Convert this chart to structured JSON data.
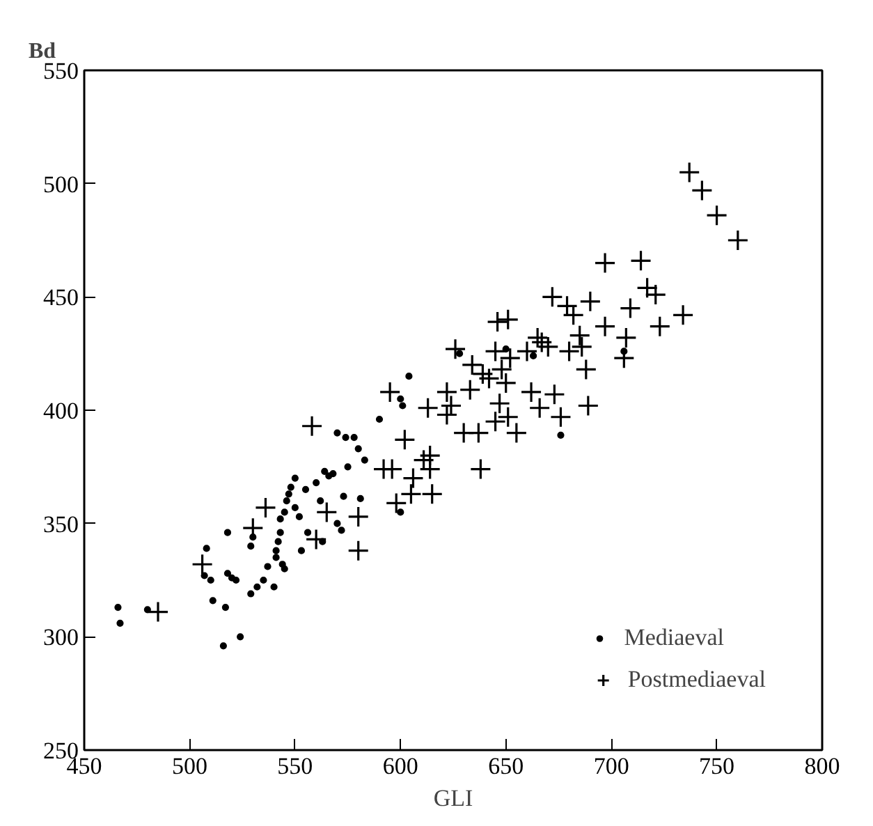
{
  "chart_data": {
    "type": "scatter",
    "xlabel": "GLI",
    "ylabel": "Bd",
    "xlim": [
      450,
      800
    ],
    "ylim": [
      250,
      550
    ],
    "xticks": [
      450,
      500,
      550,
      600,
      650,
      700,
      750,
      800
    ],
    "yticks": [
      250,
      300,
      350,
      400,
      450,
      500,
      550
    ],
    "grid": false,
    "legend": "bottom right",
    "series": [
      {
        "name": "Mediaeval",
        "color": "#000000",
        "marker": "circle",
        "x": [
          466,
          467,
          480,
          508,
          507,
          510,
          511,
          518,
          518,
          520,
          522,
          517,
          516,
          524,
          529,
          530,
          529,
          532,
          535,
          537,
          540,
          541,
          541,
          542,
          543,
          543,
          544,
          545,
          545,
          546,
          547,
          548,
          550,
          550,
          552,
          553,
          555,
          556,
          560,
          562,
          563,
          564,
          566,
          568,
          570,
          572,
          573,
          570,
          574,
          575,
          578,
          580,
          581,
          583,
          590,
          600,
          601,
          604,
          628,
          650,
          663,
          676,
          706,
          600
        ],
        "values": [
          313,
          306,
          312,
          339,
          327,
          325,
          316,
          346,
          328,
          326,
          325,
          313,
          296,
          300,
          340,
          344,
          319,
          322,
          325,
          331,
          322,
          335,
          338,
          342,
          352,
          346,
          332,
          330,
          355,
          360,
          363,
          366,
          370,
          357,
          353,
          338,
          365,
          346,
          368,
          360,
          342,
          373,
          371,
          372,
          350,
          347,
          362,
          390,
          388,
          375,
          388,
          383,
          361,
          378,
          396,
          405,
          402,
          415,
          425,
          427,
          424,
          389,
          426,
          355
        ]
      },
      {
        "name": "Postmediaeval",
        "color": "#000000",
        "marker": "cross",
        "x": [
          485,
          506,
          530,
          536,
          558,
          560,
          565,
          580,
          580,
          592,
          595,
          596,
          598,
          602,
          605,
          606,
          611,
          614,
          614,
          615,
          613,
          622,
          622,
          624,
          626,
          630,
          633,
          634,
          637,
          638,
          639,
          642,
          645,
          645,
          646,
          647,
          648,
          650,
          651,
          652,
          651,
          655,
          660,
          662,
          665,
          666,
          667,
          670,
          673,
          672,
          676,
          679,
          680,
          682,
          685,
          686,
          688,
          689,
          690,
          697,
          697,
          706,
          707,
          709,
          714,
          717,
          721,
          723,
          734,
          737,
          743,
          750,
          760
        ],
        "values": [
          311,
          332,
          348,
          357,
          393,
          343,
          355,
          353,
          338,
          374,
          408,
          374,
          359,
          387,
          363,
          370,
          378,
          380,
          374,
          363,
          401,
          408,
          398,
          402,
          427,
          390,
          409,
          420,
          390,
          374,
          416,
          414,
          426,
          395,
          439,
          403,
          418,
          412,
          440,
          423,
          397,
          390,
          426,
          408,
          432,
          401,
          430,
          428,
          407,
          450,
          397,
          446,
          426,
          442,
          433,
          428,
          418,
          402,
          448,
          465,
          437,
          423,
          432,
          445,
          466,
          454,
          451,
          437,
          442,
          505,
          497,
          486,
          475
        ]
      }
    ]
  }
}
